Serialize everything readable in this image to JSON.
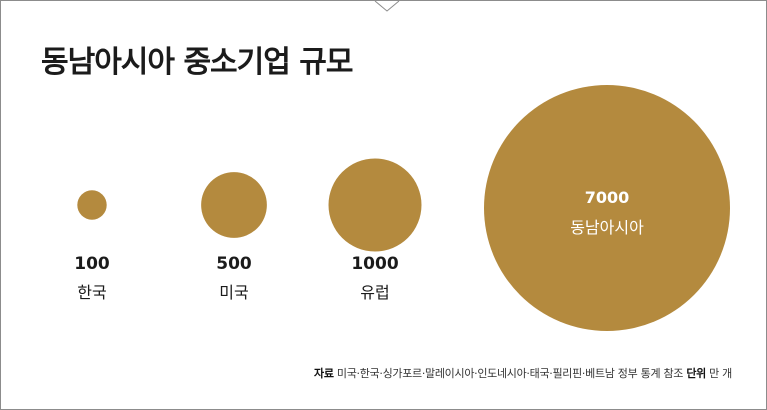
{
  "title": "동남아시아 중소기업 규모",
  "colors": {
    "bubble": "#b48a3e",
    "text": "#1b1b1b",
    "border": "#8c8c8c"
  },
  "chart_data": {
    "type": "bubble",
    "title": "동남아시아 중소기업 규모",
    "unit": "만 개",
    "categories": [
      "한국",
      "미국",
      "유럽",
      "동남아시아"
    ],
    "values": [
      100,
      500,
      1000,
      7000
    ],
    "value_labels": [
      "100",
      "500",
      "1000",
      "7000"
    ]
  },
  "source": {
    "label": "자료",
    "text": "미국·한국·싱가포르·말레이시아·인도네시아·태국·필리핀·베트남 정부 통계 참조",
    "unit_label": "단위",
    "unit_text": "만 개"
  }
}
